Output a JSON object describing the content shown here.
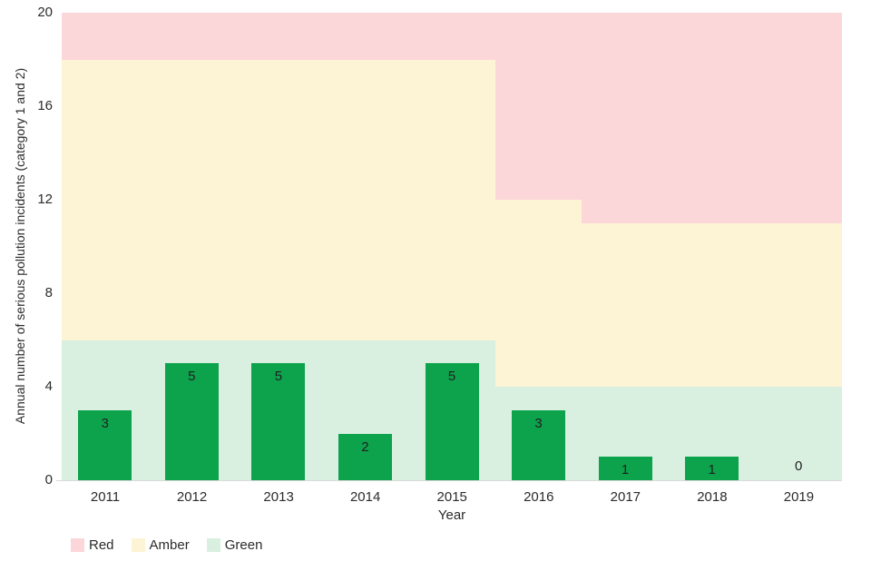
{
  "chart_data": {
    "type": "bar",
    "title": "",
    "xlabel": "Year",
    "ylabel": "Annual number of serious pollution incidents (category 1 and 2)",
    "ylim": [
      0,
      20
    ],
    "yticks": [
      0,
      4,
      8,
      12,
      16,
      20
    ],
    "categories": [
      "2011",
      "2012",
      "2013",
      "2014",
      "2015",
      "2016",
      "2017",
      "2018",
      "2019"
    ],
    "values": [
      3,
      5,
      5,
      2,
      5,
      3,
      1,
      1,
      0
    ],
    "bar_color": "#0da24c",
    "grid": "off",
    "legend_position": "bottom-left",
    "rag_bands": [
      {
        "from_category": "2011",
        "to_category": "2015",
        "green_max": 6,
        "amber_max": 18,
        "red_max": 20
      },
      {
        "from_category": "2016",
        "to_category": "2016",
        "green_max": 4,
        "amber_max": 12,
        "red_max": 20
      },
      {
        "from_category": "2017",
        "to_category": "2019",
        "green_max": 4,
        "amber_max": 11,
        "red_max": 20
      }
    ],
    "legend": [
      {
        "label": "Red",
        "color": "#fbd7da"
      },
      {
        "label": "Amber",
        "color": "#fdf3d5"
      },
      {
        "label": "Green",
        "color": "#d9f0e1"
      }
    ]
  }
}
